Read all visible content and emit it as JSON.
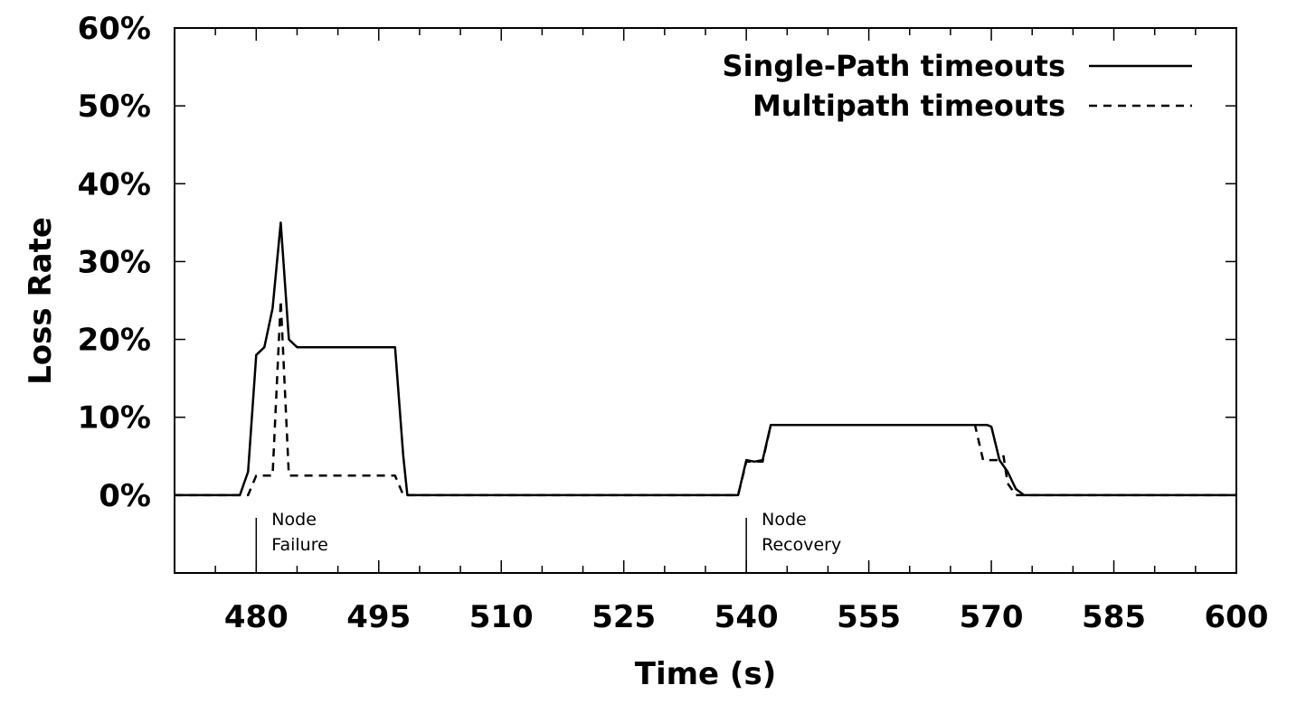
{
  "chart_data": {
    "type": "line",
    "xlabel": "Time (s)",
    "ylabel": "Loss Rate",
    "xlim": [
      470,
      600
    ],
    "ylim": [
      -10,
      60
    ],
    "x_ticks": [
      480,
      495,
      510,
      525,
      540,
      555,
      570,
      585,
      600
    ],
    "x_tick_labels": [
      "480",
      "495",
      "510",
      "525",
      "540",
      "555",
      "570",
      "585",
      "600"
    ],
    "x_minor_step": 5,
    "y_ticks": [
      0,
      10,
      20,
      30,
      40,
      50,
      60
    ],
    "y_tick_labels": [
      "0%",
      "10%",
      "20%",
      "30%",
      "40%",
      "50%",
      "60%"
    ],
    "grid": false,
    "legend_position": "top-right",
    "series": [
      {
        "name": "Single-Path timeouts",
        "style": "solid",
        "color": "#000000",
        "points": [
          [
            470,
            0
          ],
          [
            478,
            0
          ],
          [
            479,
            3
          ],
          [
            480,
            18
          ],
          [
            481,
            19
          ],
          [
            482,
            24
          ],
          [
            483,
            35
          ],
          [
            484,
            20
          ],
          [
            485,
            19
          ],
          [
            486,
            19
          ],
          [
            496,
            19
          ],
          [
            497,
            19
          ],
          [
            498,
            5
          ],
          [
            498.5,
            0
          ],
          [
            539,
            0
          ],
          [
            540,
            4.5
          ],
          [
            541,
            4.3
          ],
          [
            542,
            4.5
          ],
          [
            543,
            9
          ],
          [
            568,
            9
          ],
          [
            569.5,
            9
          ],
          [
            570,
            8.8
          ],
          [
            571,
            4.5
          ],
          [
            572,
            3
          ],
          [
            573,
            0.8
          ],
          [
            574,
            0
          ],
          [
            600,
            0
          ]
        ]
      },
      {
        "name": "Multipath timeouts",
        "style": "dashed",
        "color": "#000000",
        "points": [
          [
            470,
            0
          ],
          [
            479,
            0
          ],
          [
            480,
            2.5
          ],
          [
            482,
            2.5
          ],
          [
            483,
            25
          ],
          [
            484,
            2.5
          ],
          [
            496,
            2.5
          ],
          [
            497,
            2.5
          ],
          [
            498,
            0
          ],
          [
            539,
            0
          ],
          [
            540,
            4.3
          ],
          [
            541,
            4.3
          ],
          [
            542,
            4.3
          ],
          [
            543,
            9
          ],
          [
            567,
            9
          ],
          [
            568,
            9
          ],
          [
            569,
            4.5
          ],
          [
            571,
            4.5
          ],
          [
            571.5,
            5
          ],
          [
            572,
            1.5
          ],
          [
            573,
            0
          ],
          [
            600,
            0
          ]
        ]
      }
    ],
    "annotations": [
      {
        "x": 480,
        "lines": [
          "Node",
          "Failure"
        ]
      },
      {
        "x": 540,
        "lines": [
          "Node",
          "Recovery"
        ]
      }
    ]
  }
}
